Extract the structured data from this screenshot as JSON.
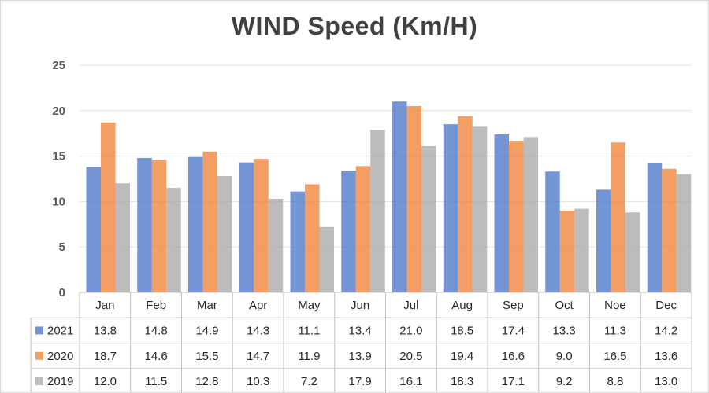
{
  "chart_data": {
    "type": "bar",
    "title": "WIND Speed (Km/H)",
    "categories": [
      "Jan",
      "Feb",
      "Mar",
      "Apr",
      "May",
      "Jun",
      "Jul",
      "Aug",
      "Sep",
      "Oct",
      "Noe",
      "Dec"
    ],
    "series": [
      {
        "name": "2021",
        "color": "#4472c4",
        "values": [
          13.8,
          14.8,
          14.9,
          14.3,
          11.1,
          13.4,
          21.0,
          18.5,
          17.4,
          13.3,
          11.3,
          14.2
        ]
      },
      {
        "name": "2020",
        "color": "#ed7d31",
        "values": [
          18.7,
          14.6,
          15.5,
          14.7,
          11.9,
          13.9,
          20.5,
          19.4,
          16.6,
          9.0,
          16.5,
          13.6
        ]
      },
      {
        "name": "2019",
        "color": "#a5a5a5",
        "values": [
          12.0,
          11.5,
          12.8,
          10.3,
          7.2,
          17.9,
          16.1,
          18.3,
          17.1,
          9.2,
          8.8,
          13.0
        ]
      }
    ],
    "ylim": [
      0,
      25
    ],
    "yticks": [
      0,
      5,
      10,
      15,
      20,
      25
    ],
    "grid": true,
    "legend": "data-table"
  }
}
